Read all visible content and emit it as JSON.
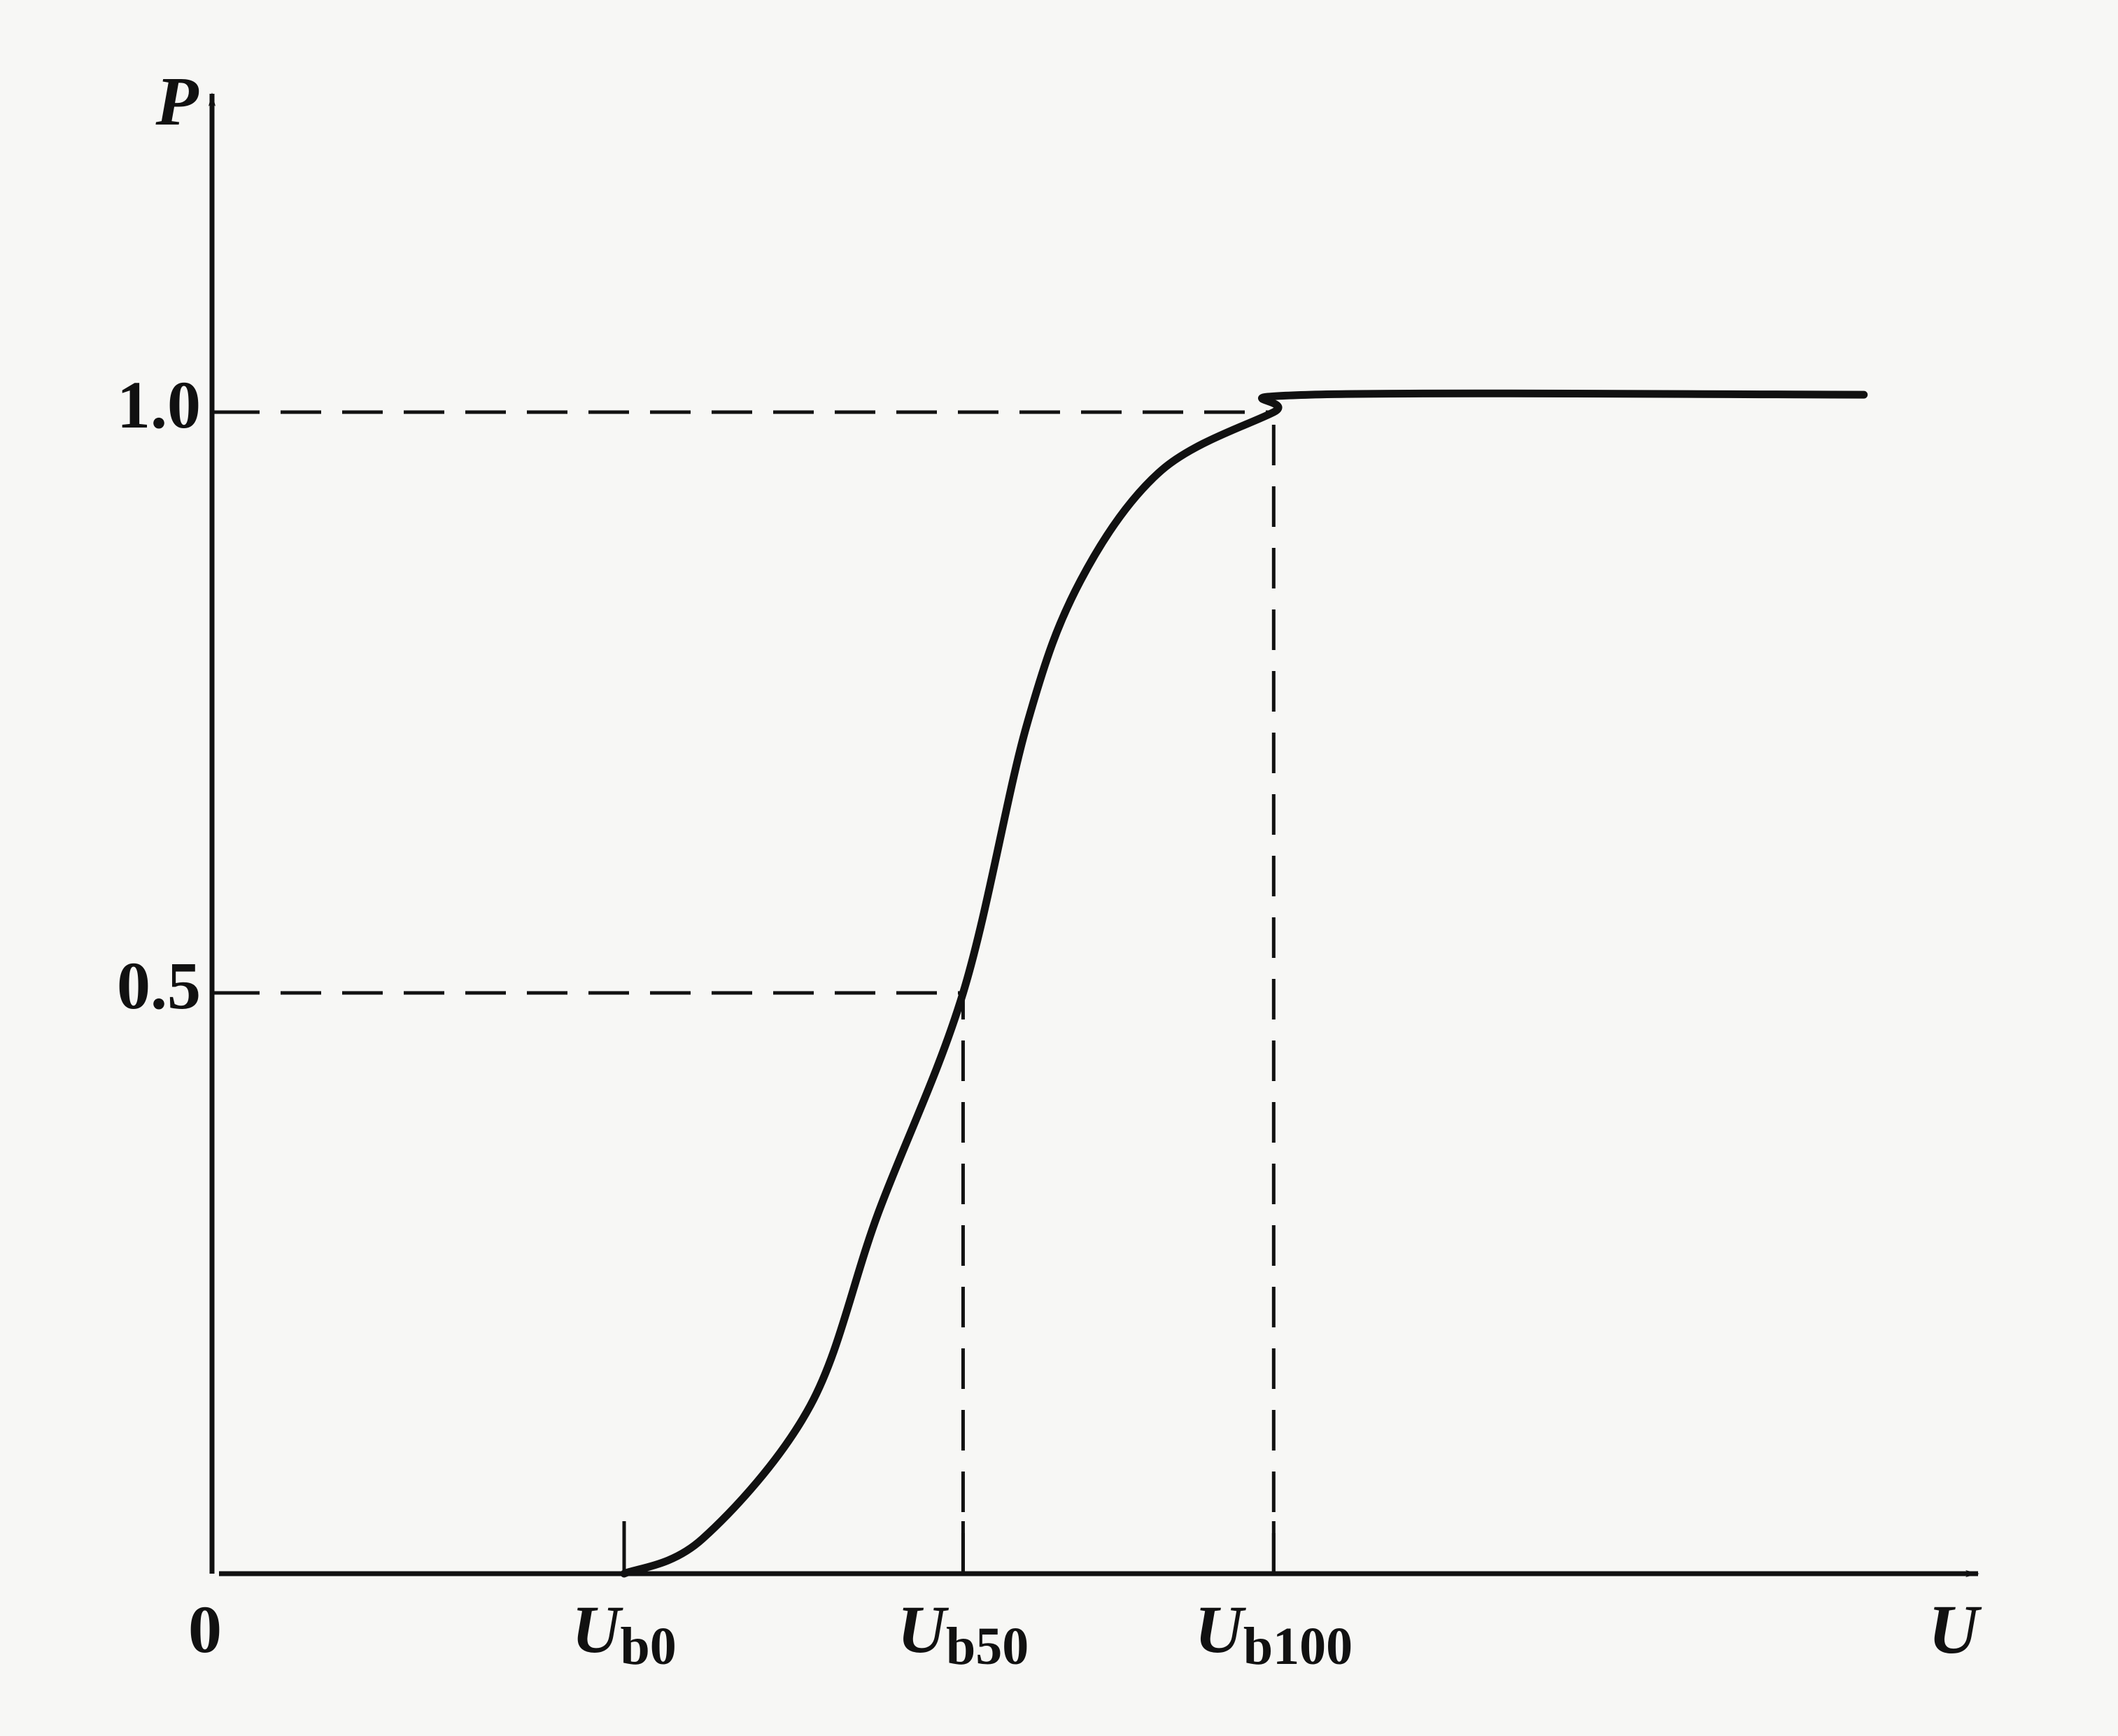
{
  "chart_data": {
    "type": "line",
    "x_label": "U",
    "y_label": "P",
    "x": [
      30,
      35.8,
      43.8,
      48.8,
      55.1,
      59.8,
      63.8,
      69.8,
      78.1,
      80.8,
      121.8
    ],
    "series": [
      {
        "color": "#111111",
        "values": [
          0,
          0.03,
          0.145,
          0.31,
          0.5,
          0.73,
          0.855,
          0.95,
          1.0,
          1.015,
          1.015
        ]
      }
    ],
    "xlim": [
      0,
      130
    ],
    "xticks": [
      0,
      {
        "value": 30,
        "label": "Ub0"
      },
      {
        "value": 55.1,
        "label": "Ub50"
      },
      {
        "value": 78.1,
        "label": "Ub100"
      }
    ],
    "ylim": [
      0,
      1.25
    ],
    "yticks": [
      0.5,
      {
        "value": 1,
        "label": "1.0"
      }
    ]
  }
}
